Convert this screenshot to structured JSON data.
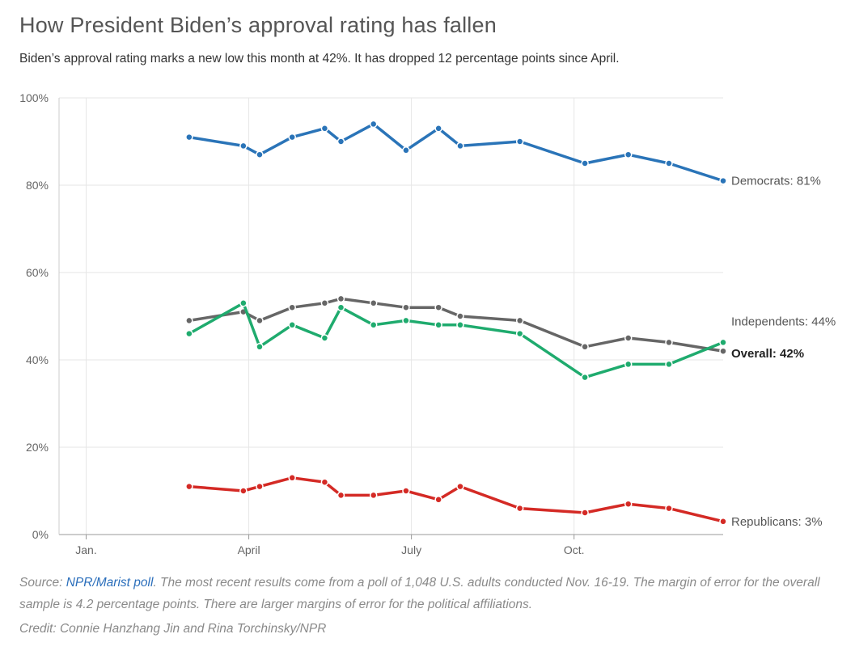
{
  "title": "How President Biden’s approval rating has fallen",
  "subtitle": "Biden’s approval rating marks a new low this month at 42%. It has dropped 12 percentage points since April.",
  "footer": {
    "source_prefix": "Source: ",
    "source_link": "NPR/Marist poll",
    "source_text": ". The most recent results come from a poll of 1,048 U.S. adults conducted Nov. 16-19. The margin of error for the overall sample is 4.2 percentage points. There are larger margins of error for the political affiliations.",
    "credit": "Credit: Connie Hanzhang Jin and Rina Torchinsky/NPR"
  },
  "chart_data": {
    "type": "line",
    "title": "How President Biden’s approval rating has fallen",
    "xlabel": "",
    "ylabel": "",
    "ylim": [
      0,
      100
    ],
    "yticks": [
      0,
      20,
      40,
      60,
      80,
      100
    ],
    "ytick_labels": [
      "0%",
      "20%",
      "40%",
      "60%",
      "80%",
      "100%"
    ],
    "x_unit": "month of 2021 (1 = Jan. 1)",
    "xlim": [
      0.5,
      12.75
    ],
    "xticks": [
      1,
      4,
      7,
      10
    ],
    "xtick_labels": [
      "Jan.",
      "April",
      "July",
      "Oct."
    ],
    "grid": true,
    "x": [
      2.9,
      3.9,
      4.2,
      4.8,
      5.4,
      5.7,
      6.3,
      6.9,
      7.5,
      7.9,
      9.0,
      10.2,
      11.0,
      11.75,
      12.75
    ],
    "series": [
      {
        "name": "Democrats",
        "label": "Democrats: 81%",
        "color": "#2a74b8",
        "bold": false,
        "values": [
          91,
          89,
          87,
          91,
          93,
          90,
          94,
          88,
          93,
          89,
          90,
          85,
          87,
          85,
          81
        ]
      },
      {
        "name": "Overall",
        "label": "Overall: 42%",
        "color": "#666666",
        "bold": true,
        "values": [
          49,
          51,
          49,
          52,
          53,
          54,
          53,
          52,
          52,
          50,
          49,
          43,
          45,
          44,
          42
        ]
      },
      {
        "name": "Independents",
        "label": "Independents: 44%",
        "color": "#1fab6e",
        "bold": false,
        "values": [
          46,
          53,
          43,
          48,
          45,
          52,
          48,
          49,
          48,
          48,
          46,
          36,
          39,
          39,
          44
        ]
      },
      {
        "name": "Republicans",
        "label": "Republicans: 3%",
        "color": "#d42a25",
        "bold": false,
        "values": [
          11,
          10,
          11,
          13,
          12,
          9,
          9,
          10,
          8,
          11,
          6,
          5,
          7,
          6,
          3
        ]
      }
    ]
  }
}
